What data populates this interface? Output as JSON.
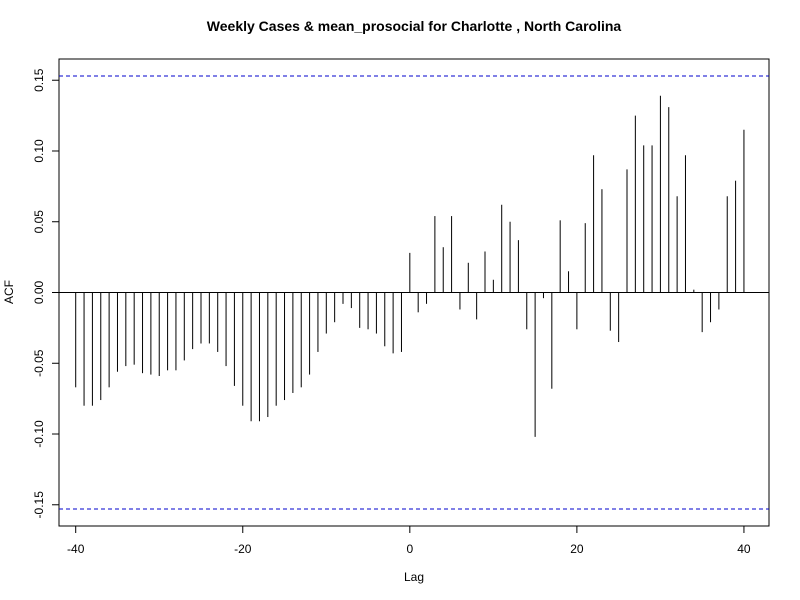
{
  "chart_data": {
    "type": "bar",
    "title": "Weekly Cases & mean_prosocial for Charlotte , North Carolina",
    "xlabel": "Lag",
    "ylabel": "ACF",
    "xlim": [
      -42,
      43
    ],
    "ylim": [
      -0.165,
      0.165
    ],
    "x_ticks": [
      -40,
      -20,
      0,
      20,
      40
    ],
    "x_tick_labels": [
      "-40",
      "-20",
      "0",
      "20",
      "40"
    ],
    "y_ticks": [
      -0.15,
      -0.1,
      -0.05,
      0.0,
      0.05,
      0.1,
      0.15
    ],
    "y_tick_labels": [
      "-0.15",
      "-0.10",
      "-0.05",
      "0.00",
      "0.05",
      "0.10",
      "0.15"
    ],
    "confidence_bounds": [
      0.153,
      -0.153
    ],
    "confidence_color": "#0000cc",
    "bar_color": "#000000",
    "lags": [
      -40,
      -39,
      -38,
      -37,
      -36,
      -35,
      -34,
      -33,
      -32,
      -31,
      -30,
      -29,
      -28,
      -27,
      -26,
      -25,
      -24,
      -23,
      -22,
      -21,
      -20,
      -19,
      -18,
      -17,
      -16,
      -15,
      -14,
      -13,
      -12,
      -11,
      -10,
      -9,
      -8,
      -7,
      -6,
      -5,
      -4,
      -3,
      -2,
      -1,
      0,
      1,
      2,
      3,
      4,
      5,
      6,
      7,
      8,
      9,
      10,
      11,
      12,
      13,
      14,
      15,
      16,
      17,
      18,
      19,
      20,
      21,
      22,
      23,
      24,
      25,
      26,
      27,
      28,
      29,
      30,
      31,
      32,
      33,
      34,
      35,
      36,
      37,
      38,
      39,
      40
    ],
    "values": [
      -0.067,
      -0.08,
      -0.08,
      -0.076,
      -0.067,
      -0.056,
      -0.052,
      -0.051,
      -0.057,
      -0.058,
      -0.059,
      -0.055,
      -0.055,
      -0.048,
      -0.04,
      -0.036,
      -0.036,
      -0.042,
      -0.052,
      -0.066,
      -0.08,
      -0.091,
      -0.091,
      -0.088,
      -0.08,
      -0.076,
      -0.071,
      -0.067,
      -0.058,
      -0.042,
      -0.029,
      -0.021,
      -0.008,
      -0.011,
      -0.025,
      -0.026,
      -0.029,
      -0.038,
      -0.043,
      -0.042,
      0.028,
      -0.014,
      -0.008,
      0.054,
      0.032,
      0.054,
      -0.012,
      0.021,
      -0.019,
      0.029,
      0.009,
      0.062,
      0.05,
      0.037,
      -0.026,
      -0.102,
      -0.004,
      -0.068,
      0.051,
      0.015,
      -0.026,
      0.049,
      0.097,
      0.073,
      -0.027,
      -0.035,
      0.087,
      0.125,
      0.104,
      0.104,
      0.139,
      0.131,
      0.068,
      0.097,
      0.002,
      -0.028,
      -0.021,
      -0.012,
      0.068,
      0.079,
      0.115
    ]
  }
}
